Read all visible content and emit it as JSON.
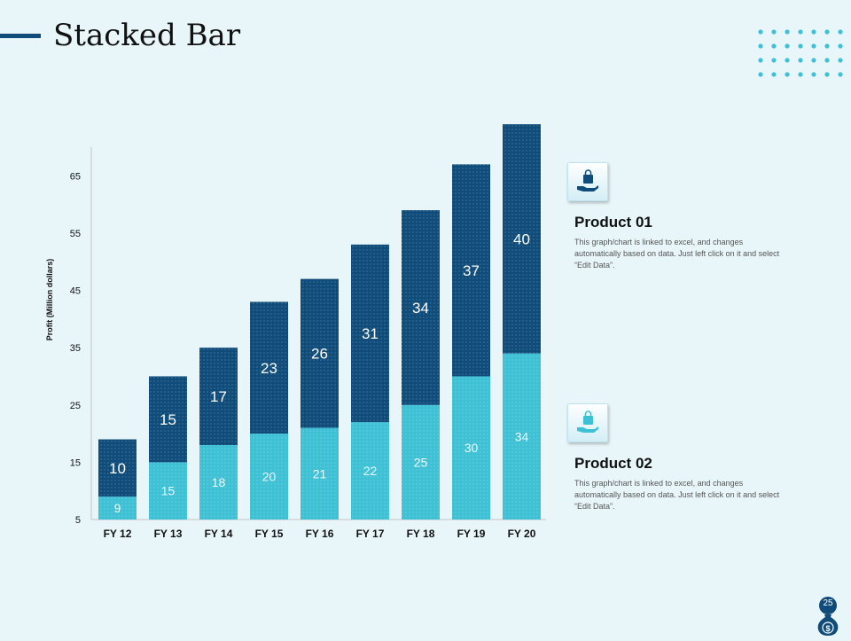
{
  "slide": {
    "title": "Stacked Bar",
    "page_number": "25"
  },
  "legend": [
    {
      "title": "Product  01",
      "description": "This graph/chart is linked to excel, and changes automatically based on data. Just left click on it and select “Edit Data”.",
      "icon": "hand-shopping-bag-icon"
    },
    {
      "title": "Product  02",
      "description": "This graph/chart is linked to excel, and changes automatically based on data. Just left click on it and select “Edit Data”.",
      "icon": "hand-shopping-bag-icon"
    }
  ],
  "colors": {
    "product01": "#0f4c7a",
    "product02": "#3ec1d5",
    "title_accent": "#0f4c7a",
    "dots": "#3ec1d5"
  },
  "chart_data": {
    "type": "bar",
    "stacked": true,
    "categories": [
      "FY 12",
      "FY 13",
      "FY 14",
      "FY 15",
      "FY 16",
      "FY 17",
      "FY 18",
      "FY 19",
      "FY 20"
    ],
    "series": [
      {
        "name": "Product  02",
        "values": [
          9,
          15,
          18,
          20,
          21,
          22,
          25,
          30,
          34
        ]
      },
      {
        "name": "Product  01",
        "values": [
          10,
          15,
          17,
          23,
          26,
          31,
          34,
          37,
          40
        ]
      }
    ],
    "ylabel": "Profit  (Million  dollars)",
    "ylim": [
      5,
      70
    ],
    "yticks": [
      5,
      15,
      25,
      35,
      45,
      55,
      65
    ]
  }
}
